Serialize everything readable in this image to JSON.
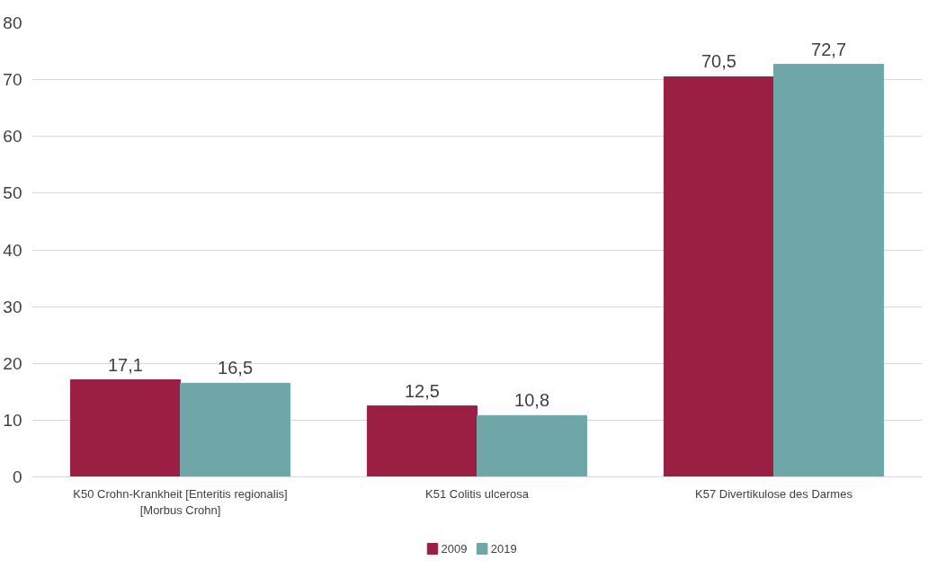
{
  "chart_data": {
    "type": "bar",
    "categories": [
      "K50 Crohn-Krankheit [Enteritis regionalis] [Morbus Crohn]",
      "K51 Colitis ulcerosa",
      "K57 Divertikulose des Darmes"
    ],
    "series": [
      {
        "name": "2009",
        "color": "#9b1f42",
        "values": [
          17.1,
          12.5,
          70.5
        ],
        "value_labels": [
          "17,1",
          "12,5",
          "70,5"
        ]
      },
      {
        "name": "2019",
        "color": "#6fa6a8",
        "values": [
          16.5,
          10.8,
          72.7
        ],
        "value_labels": [
          "16,5",
          "10,8",
          "72,7"
        ]
      }
    ],
    "ylim": [
      0,
      80
    ],
    "yticks": [
      0,
      10,
      20,
      30,
      40,
      50,
      60,
      70,
      80
    ],
    "grid": "y",
    "legend": "bottom"
  }
}
